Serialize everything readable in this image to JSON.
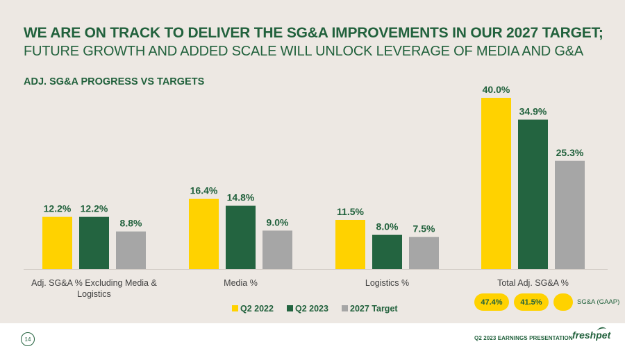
{
  "header": {
    "title": "WE ARE ON TRACK TO DELIVER THE SG&A IMPROVEMENTS IN OUR 2027 TARGET;",
    "subtitle": "FUTURE GROWTH AND ADDED SCALE WILL UNLOCK LEVERAGE OF MEDIA AND G&A"
  },
  "chart_data": {
    "type": "bar",
    "title": "ADJ. SG&A PROGRESS VS TARGETS",
    "categories": [
      "Adj. SG&A % Excluding Media & Logistics",
      "Media %",
      "Logistics %",
      "Total Adj. SG&A %"
    ],
    "category_lines": [
      [
        "Adj. SG&A % Excluding Media &",
        "Logistics"
      ],
      [
        "Media %"
      ],
      [
        "Logistics %"
      ],
      [
        "Total Adj. SG&A %"
      ]
    ],
    "series": [
      {
        "name": "Q2 2022",
        "values": [
          12.2,
          16.4,
          11.5,
          40.0
        ],
        "labels": [
          "12.2%",
          "16.4%",
          "11.5%",
          "40.0%"
        ],
        "color": "#ffd200"
      },
      {
        "name": "Q2 2023",
        "values": [
          12.2,
          14.8,
          8.0,
          34.9
        ],
        "labels": [
          "12.2%",
          "14.8%",
          "8.0%",
          "34.9%"
        ],
        "color": "#236440"
      },
      {
        "name": "2027 Target",
        "values": [
          8.8,
          9.0,
          7.5,
          25.3
        ],
        "labels": [
          "8.8%",
          "9.0%",
          "7.5%",
          "25.3%"
        ],
        "color": "#a6a6a6"
      }
    ],
    "ylim": [
      0,
      40
    ],
    "grid": false,
    "legend": "bottom",
    "label_color": "#21613c"
  },
  "gaap": {
    "q2_2022": "47.4%",
    "q2_2023": "41.5%",
    "label": "SG&A (GAAP)",
    "color": "#ffd200"
  },
  "footer": {
    "page_number": "14",
    "presentation": "Q2 2023 EARNINGS PRESENTATION",
    "logo": "freshpet"
  }
}
